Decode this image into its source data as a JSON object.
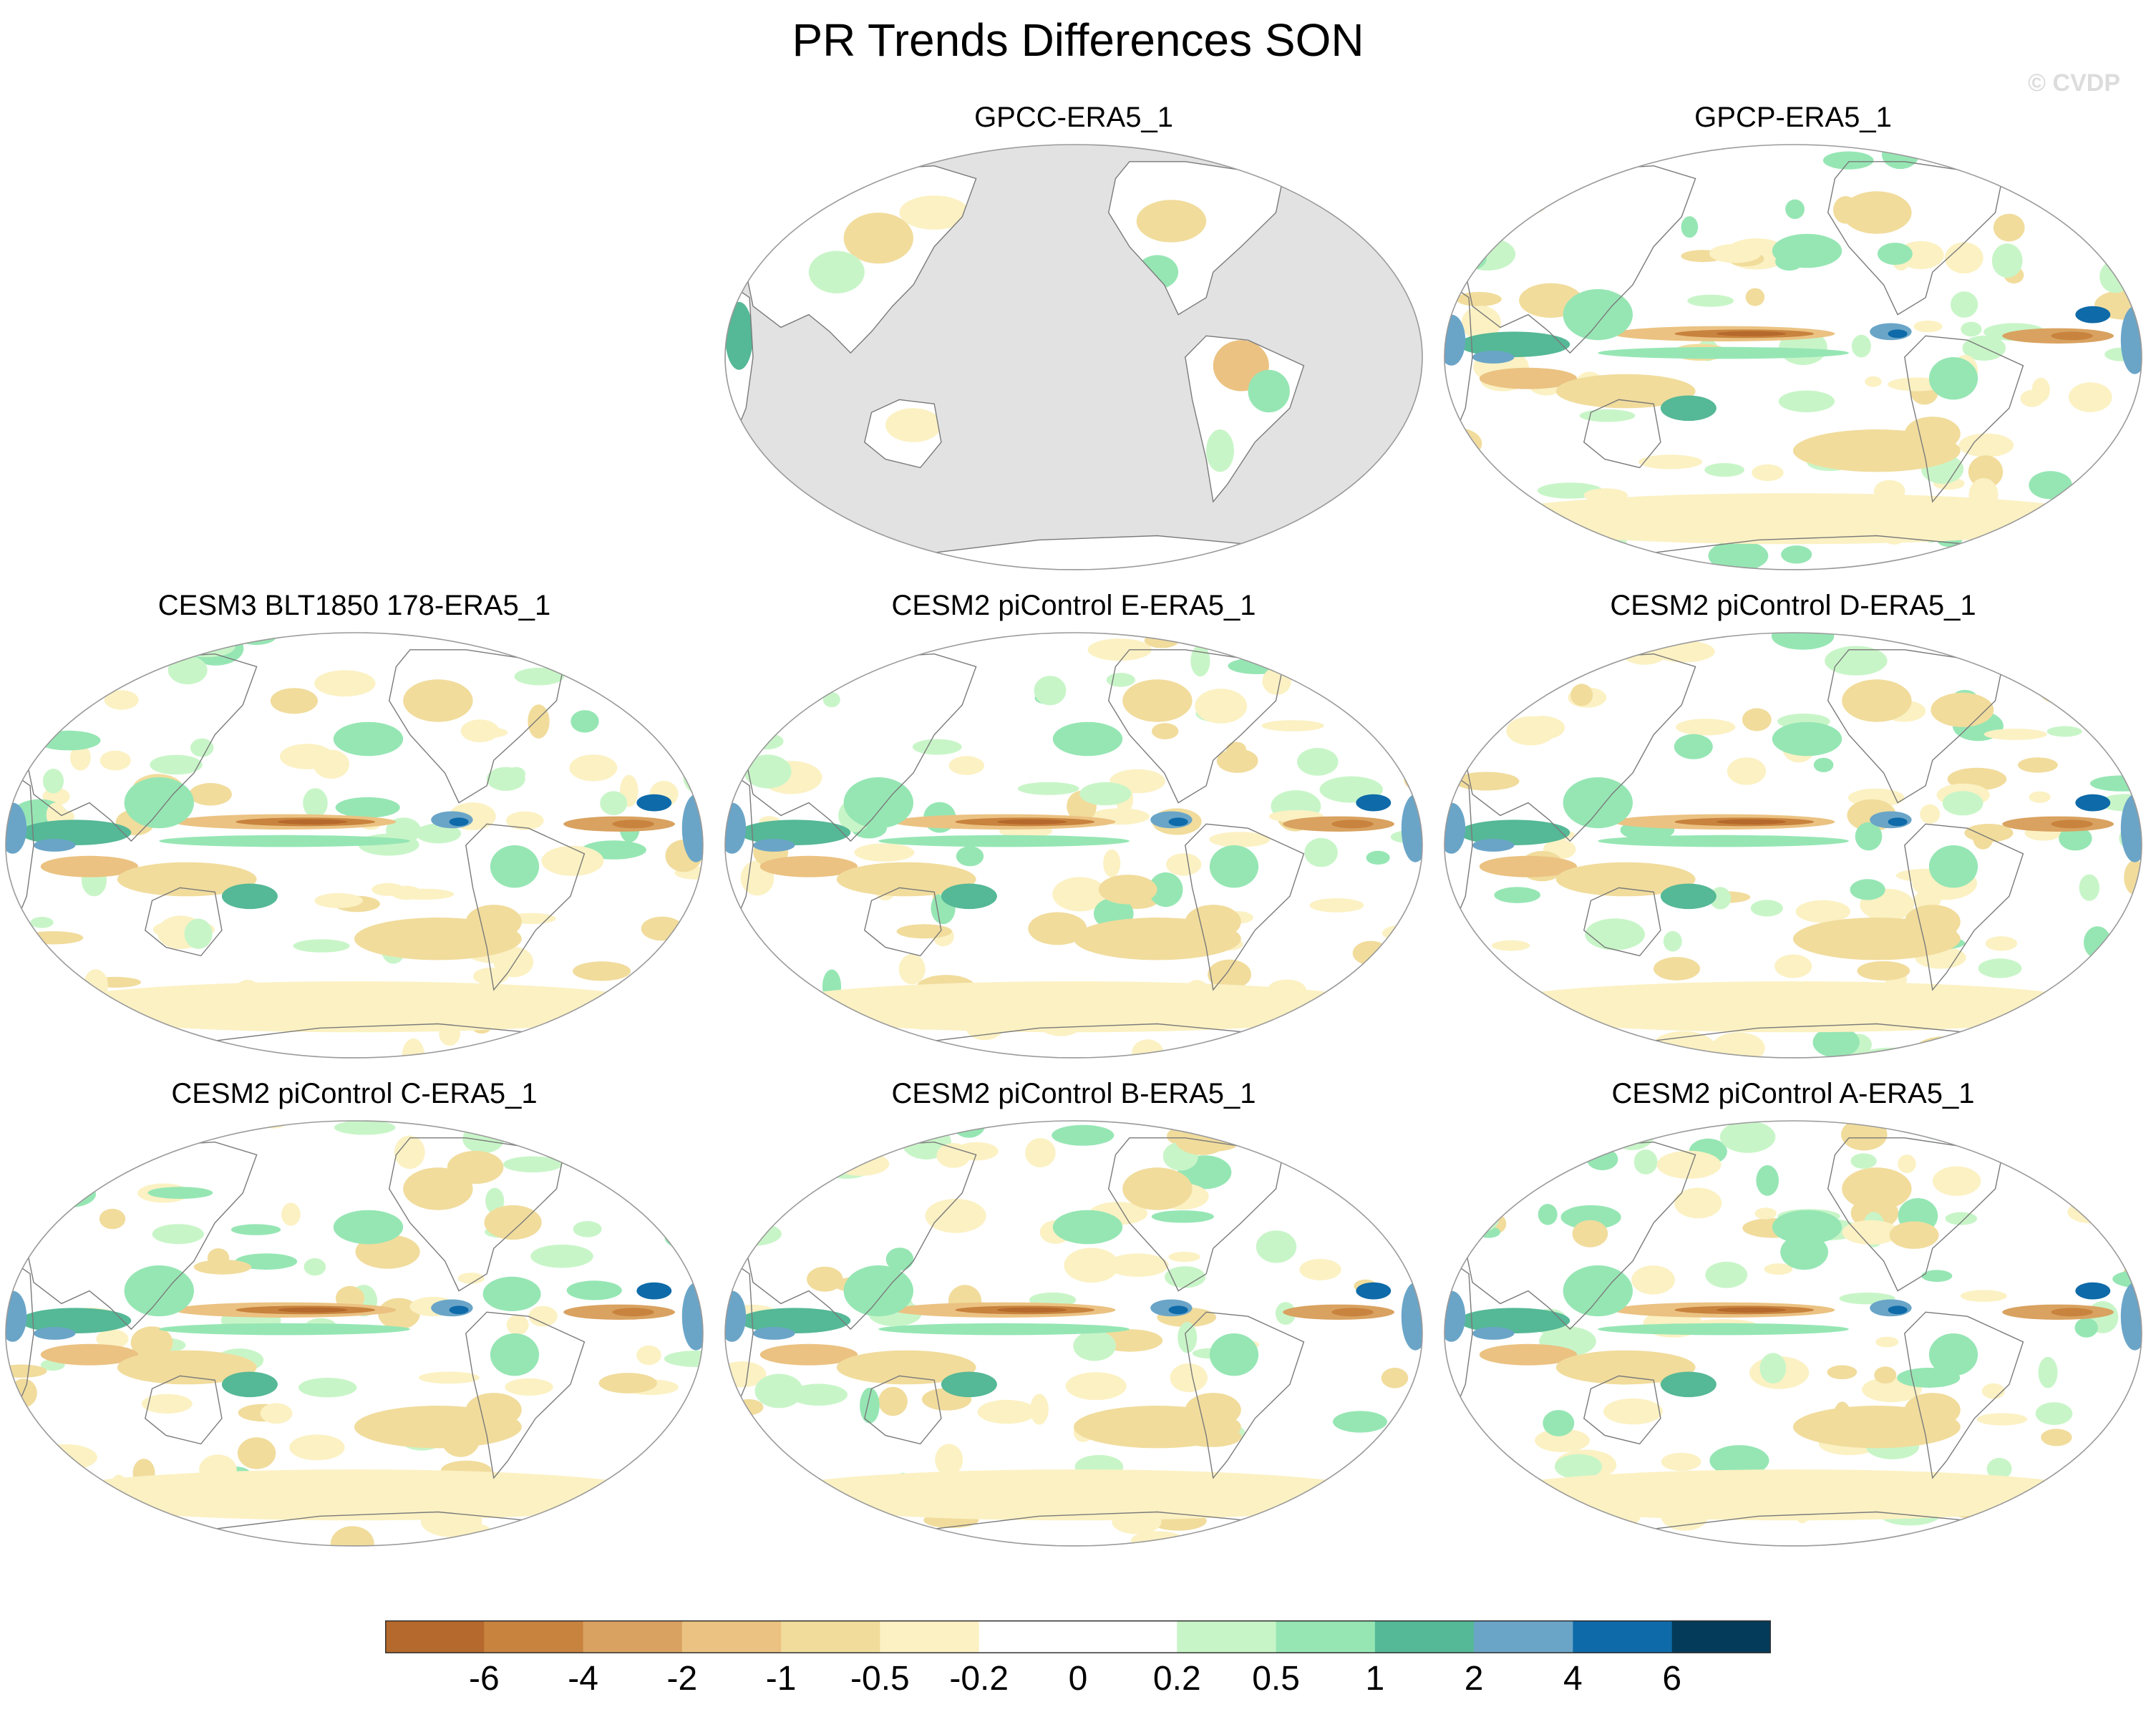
{
  "figure": {
    "title": "PR Trends Differences SON",
    "watermark": "© CVDP"
  },
  "panels": [
    {
      "id": "gpcc",
      "title": "GPCC-ERA5_1",
      "land_only": true
    },
    {
      "id": "gpcp",
      "title": "GPCP-ERA5_1",
      "land_only": false
    },
    {
      "id": "cesm3",
      "title": "CESM3 BLT1850 178-ERA5_1",
      "land_only": false
    },
    {
      "id": "e",
      "title": "CESM2 piControl E-ERA5_1",
      "land_only": false
    },
    {
      "id": "d",
      "title": "CESM2 piControl D-ERA5_1",
      "land_only": false
    },
    {
      "id": "c",
      "title": "CESM2 piControl C-ERA5_1",
      "land_only": false
    },
    {
      "id": "b",
      "title": "CESM2 piControl B-ERA5_1",
      "land_only": false
    },
    {
      "id": "a",
      "title": "CESM2 piControl A-ERA5_1",
      "land_only": false
    }
  ],
  "colorbar": {
    "levels": [
      "-6",
      "-4",
      "-2",
      "-1",
      "-0.5",
      "-0.2",
      "0",
      "0.2",
      "0.5",
      "1",
      "2",
      "4",
      "6"
    ],
    "colors": [
      "#b5692c",
      "#c8833f",
      "#d9a260",
      "#ebc282",
      "#f1dc9c",
      "#fbf1c3",
      "#ffffff",
      "#ffffff",
      "#c8f5c8",
      "#96e6b4",
      "#55b896",
      "#6aa5c8",
      "#0e6aa8",
      "#053b5a"
    ],
    "missing_color": "#e2e2e2"
  }
}
